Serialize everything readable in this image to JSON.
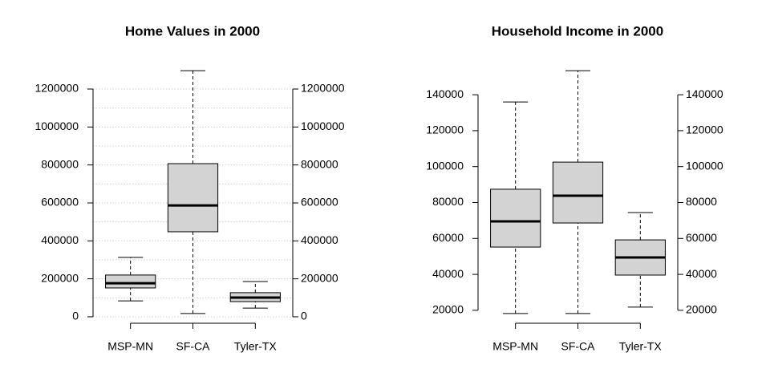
{
  "chart_data": [
    {
      "type": "boxplot",
      "title": "Home Values in 2000",
      "categories": [
        "MSP-MN",
        "SF-CA",
        "Tyler-TX"
      ],
      "boxes": [
        {
          "whisker_low": 84000,
          "q1": 152000,
          "median": 177000,
          "q3": 220000,
          "whisker_high": 313000
        },
        {
          "whisker_low": 17000,
          "q1": 448000,
          "median": 587000,
          "q3": 807000,
          "whisker_high": 1297000
        },
        {
          "whisker_low": 46000,
          "q1": 80000,
          "median": 101000,
          "q3": 127000,
          "whisker_high": 186000
        }
      ],
      "color": "#d3d3d3",
      "ylim": [
        -34000,
        1348000
      ],
      "yticks": [
        0,
        200000,
        400000,
        600000,
        800000,
        1000000,
        1200000
      ],
      "gridlines": [
        0,
        100000,
        200000,
        300000,
        400000,
        500000,
        600000,
        700000,
        800000,
        900000,
        1000000,
        1100000,
        1200000
      ],
      "right_axis": true
    },
    {
      "type": "boxplot",
      "title": "Household Income in 2000",
      "categories": [
        "MSP-MN",
        "SF-CA",
        "Tyler-TX"
      ],
      "boxes": [
        {
          "whisker_low": 18200,
          "q1": 55200,
          "median": 69500,
          "q3": 87400,
          "whisker_high": 136000
        },
        {
          "whisker_low": 18200,
          "q1": 68600,
          "median": 83800,
          "q3": 102500,
          "whisker_high": 153400
        },
        {
          "whisker_low": 21800,
          "q1": 39600,
          "median": 49400,
          "q3": 59200,
          "whisker_high": 74400
        }
      ],
      "color": "#d3d3d3",
      "ylim": [
        12800,
        158800
      ],
      "yticks": [
        20000,
        40000,
        60000,
        80000,
        100000,
        120000,
        140000
      ],
      "right_axis": true
    }
  ]
}
